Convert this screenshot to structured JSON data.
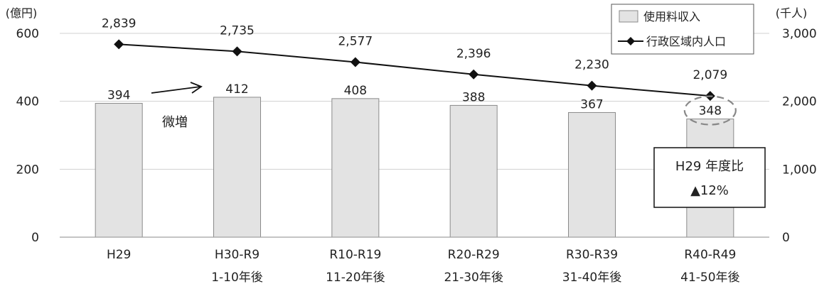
{
  "chart_data": {
    "type": "bar",
    "categories": [
      [
        "H29",
        ""
      ],
      [
        "H30-R9",
        "1-10年後"
      ],
      [
        "R10-R19",
        "11-20年後"
      ],
      [
        "R20-R29",
        "21-30年後"
      ],
      [
        "R30-R39",
        "31-40年後"
      ],
      [
        "R40-R49",
        "41-50年後"
      ]
    ],
    "series": [
      {
        "name": "使用料収入",
        "type": "bar",
        "axis": "left",
        "values": [
          394,
          412,
          408,
          388,
          367,
          348
        ],
        "labels": [
          "394",
          "412",
          "408",
          "388",
          "367",
          "348"
        ],
        "color": "#e3e3e3"
      },
      {
        "name": "行政区域内人口",
        "type": "line",
        "axis": "right",
        "values": [
          2839,
          2735,
          2577,
          2396,
          2230,
          2079
        ],
        "labels": [
          "2,839",
          "2,735",
          "2,577",
          "2,396",
          "2,230",
          "2,079"
        ],
        "color": "#111111"
      }
    ],
    "y_left": {
      "unit": "(億円)",
      "ylim": [
        0,
        600
      ],
      "ticks": [
        0,
        200,
        400,
        600
      ],
      "tick_labels": [
        "0",
        "200",
        "400",
        "600"
      ]
    },
    "y_right": {
      "unit": "(千人)",
      "ylim": [
        0,
        3000
      ],
      "ticks": [
        0,
        1000,
        2000,
        3000
      ],
      "tick_labels": [
        "0",
        "1,000",
        "2,000",
        "3,000"
      ]
    },
    "grid": true,
    "legend": "top-right",
    "annotations": {
      "increase_note": "微増",
      "comparison_box": [
        "H29 年度比",
        "▲12%"
      ]
    }
  }
}
